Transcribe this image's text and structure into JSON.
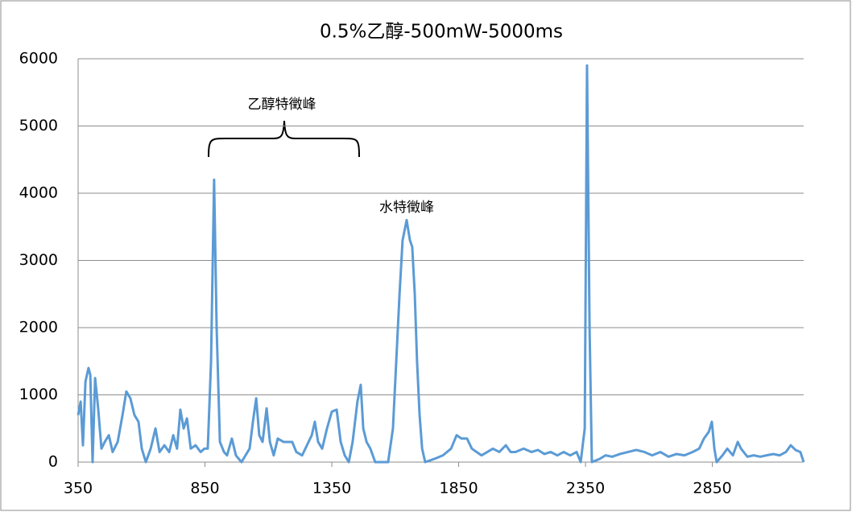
{
  "chart_data": {
    "type": "line",
    "title": "0.5%乙醇-500mW-5000ms",
    "x": [
      350,
      360,
      369,
      379,
      391,
      398,
      407,
      417,
      429,
      442,
      455,
      471,
      486,
      506,
      525,
      540,
      556,
      572,
      588,
      601,
      617,
      636,
      655,
      671,
      690,
      709,
      725,
      740,
      753,
      766,
      779,
      794,
      813,
      833,
      848,
      861,
      874,
      886,
      896,
      909,
      925,
      937,
      956,
      972,
      994,
      1010,
      1026,
      1039,
      1052,
      1064,
      1077,
      1093,
      1106,
      1121,
      1137,
      1160,
      1179,
      1194,
      1210,
      1233,
      1252,
      1271,
      1283,
      1296,
      1312,
      1331,
      1350,
      1369,
      1385,
      1401,
      1417,
      1432,
      1451,
      1464,
      1474,
      1487,
      1502,
      1521,
      1572,
      1591,
      1604,
      1617,
      1629,
      1645,
      1658,
      1667,
      1677,
      1686,
      1696,
      1706,
      1718,
      1756,
      1788,
      1820,
      1842,
      1861,
      1883,
      1902,
      1921,
      1940,
      1963,
      1985,
      2010,
      2036,
      2055,
      2074,
      2106,
      2137,
      2163,
      2188,
      2213,
      2239,
      2264,
      2290,
      2315,
      2331,
      2347,
      2356,
      2366,
      2375,
      2407,
      2429,
      2455,
      2486,
      2518,
      2550,
      2582,
      2613,
      2645,
      2677,
      2709,
      2740,
      2772,
      2798,
      2817,
      2836,
      2848,
      2858,
      2867,
      2890,
      2909,
      2931,
      2950,
      2963,
      2988,
      3013,
      3039,
      3064,
      3090,
      3115,
      3140,
      3159,
      3178,
      3197,
      3210
    ],
    "series": [
      {
        "color": "#5b9bd5",
        "values": [
          700,
          900,
          250,
          1200,
          1400,
          1300,
          0,
          1250,
          800,
          200,
          300,
          400,
          150,
          300,
          700,
          1050,
          950,
          700,
          600,
          200,
          0,
          200,
          500,
          150,
          250,
          150,
          400,
          200,
          780,
          500,
          650,
          200,
          250,
          150,
          200,
          200,
          1500,
          4200,
          2000,
          300,
          150,
          100,
          350,
          100,
          0,
          100,
          200,
          600,
          950,
          400,
          300,
          800,
          300,
          100,
          350,
          300,
          300,
          300,
          150,
          100,
          250,
          400,
          600,
          300,
          200,
          500,
          750,
          780,
          300,
          100,
          0,
          300,
          900,
          1150,
          500,
          300,
          200,
          0,
          0,
          500,
          1500,
          2500,
          3300,
          3600,
          3300,
          3200,
          2500,
          1500,
          700,
          200,
          0,
          50,
          100,
          200,
          400,
          350,
          350,
          200,
          150,
          100,
          150,
          200,
          150,
          250,
          150,
          150,
          200,
          150,
          180,
          120,
          150,
          100,
          150,
          100,
          150,
          0,
          500,
          5900,
          2000,
          0,
          50,
          100,
          80,
          120,
          150,
          180,
          150,
          100,
          150,
          80,
          120,
          100,
          150,
          200,
          350,
          450,
          600,
          200,
          0,
          100,
          200,
          100,
          300,
          200,
          80,
          100,
          80,
          100,
          120,
          100,
          150,
          250,
          180,
          150,
          0
        ]
      }
    ],
    "xlim": [
      350,
      3210
    ],
    "xticks": [
      350,
      850,
      1350,
      1850,
      2350,
      2850
    ],
    "ylim": [
      0,
      6000
    ],
    "yticks": [
      0,
      1000,
      2000,
      3000,
      4000,
      5000,
      6000
    ],
    "grid": true,
    "annotations": [
      "乙醇特徵峰",
      "水特徵峰"
    ]
  }
}
